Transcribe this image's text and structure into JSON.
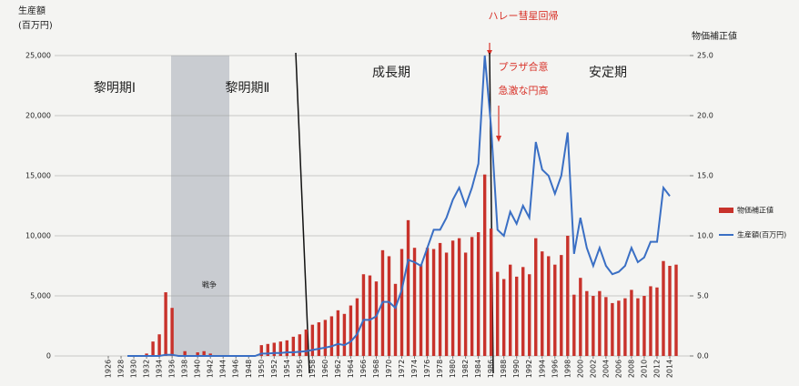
{
  "chart_data": {
    "type": "combo",
    "y_label_lines": [
      "生産額",
      "(百万円)"
    ],
    "y2_label": "物価補正値",
    "annotations": [
      "黎明期Ⅰ",
      "黎明期Ⅱ",
      "成長期",
      "安定期",
      "戦争",
      "ハレー彗星回帰",
      "プラザ合意",
      "急激な円高"
    ],
    "x": [
      1926,
      1927,
      1928,
      1929,
      1930,
      1931,
      1932,
      1933,
      1934,
      1935,
      1936,
      1937,
      1938,
      1939,
      1940,
      1941,
      1942,
      1943,
      1944,
      1945,
      1946,
      1947,
      1948,
      1949,
      1950,
      1951,
      1952,
      1953,
      1954,
      1955,
      1956,
      1957,
      1958,
      1959,
      1960,
      1961,
      1962,
      1963,
      1964,
      1965,
      1966,
      1967,
      1968,
      1969,
      1970,
      1971,
      1972,
      1973,
      1974,
      1975,
      1976,
      1977,
      1978,
      1979,
      1980,
      1981,
      1982,
      1983,
      1984,
      1985,
      1986,
      1987,
      1988,
      1989,
      1990,
      1991,
      1992,
      1993,
      1994,
      1995,
      1996,
      1997,
      1998,
      1999,
      2000,
      2001,
      2002,
      2003,
      2004,
      2005,
      2006,
      2007,
      2008,
      2009,
      2010,
      2011,
      2012,
      2013,
      2014,
      2015
    ],
    "xlim": [
      1925.5,
      2015.5
    ],
    "xticks": [
      1926,
      1928,
      1930,
      1932,
      1934,
      1936,
      1938,
      1940,
      1942,
      1944,
      1946,
      1948,
      1950,
      1952,
      1954,
      1956,
      1958,
      1960,
      1962,
      1964,
      1966,
      1968,
      1970,
      1972,
      1974,
      1976,
      1978,
      1980,
      1982,
      1984,
      1986,
      1988,
      1990,
      1992,
      1994,
      1996,
      1998,
      2000,
      2002,
      2004,
      2006,
      2008,
      2010,
      2012,
      2014
    ],
    "ylim": [
      0,
      25000
    ],
    "yticks": [
      0,
      {
        "value": 5000,
        "label": "5,000"
      },
      {
        "value": 10000,
        "label": "10,000"
      },
      {
        "value": 15000,
        "label": "15,000"
      },
      {
        "value": 20000,
        "label": "20,000"
      },
      {
        "value": 25000,
        "label": "25,000"
      }
    ],
    "y2lim": [
      0,
      25
    ],
    "y2ticks": [
      {
        "value": 0,
        "label": "0.0"
      },
      {
        "value": 5,
        "label": "5.0"
      },
      {
        "value": 10,
        "label": "10.0"
      },
      {
        "value": 15,
        "label": "15.0"
      },
      {
        "value": 20,
        "label": "20.0"
      },
      {
        "value": 25,
        "label": "25.0"
      }
    ],
    "grid": true,
    "series": [
      {
        "name": "物価補正値",
        "type": "bar",
        "axis": "y2",
        "color": "#c8322b",
        "values": [
          0,
          0,
          0,
          0,
          0,
          0,
          0.2,
          1.2,
          1.8,
          5.3,
          4.0,
          0,
          0.4,
          0,
          0.3,
          0.4,
          0.2,
          0,
          0,
          0,
          0,
          0,
          0,
          0,
          0.9,
          1.0,
          1.1,
          1.2,
          1.3,
          1.6,
          1.8,
          2.2,
          2.6,
          2.8,
          3.0,
          3.3,
          3.8,
          3.5,
          4.2,
          4.8,
          6.8,
          6.7,
          6.2,
          8.8,
          8.3,
          6.0,
          8.9,
          11.3,
          9.0,
          7.6,
          9.0,
          8.9,
          9.4,
          8.6,
          9.6,
          9.8,
          8.6,
          9.9,
          10.3,
          15.1,
          10.6,
          7.0,
          6.4,
          7.6,
          6.6,
          7.4,
          6.8,
          9.8,
          8.7,
          8.3,
          7.6,
          8.4,
          10.0,
          5.1,
          6.5,
          5.4,
          5.0,
          5.4,
          4.9,
          4.4,
          4.6,
          4.8,
          5.5,
          4.8,
          5.0,
          5.8,
          5.7,
          7.9,
          7.5,
          7.6
        ]
      },
      {
        "name": "生産額(百万円)",
        "type": "line",
        "color": "#3a6fc4",
        "values": [
          null,
          null,
          null,
          0,
          0,
          0,
          0,
          0,
          0,
          100,
          100,
          0,
          0,
          0,
          0,
          0,
          0,
          0,
          0,
          0,
          0,
          0,
          0,
          0,
          200,
          200,
          250,
          250,
          300,
          300,
          350,
          400,
          500,
          600,
          700,
          800,
          1000,
          900,
          1200,
          1800,
          3000,
          3000,
          3300,
          4500,
          4500,
          4000,
          5500,
          8000,
          7800,
          7500,
          9000,
          10500,
          10500,
          11500,
          13000,
          14000,
          12500,
          14000,
          16000,
          25000,
          19000,
          10500,
          10000,
          12000,
          11000,
          12500,
          11500,
          17800,
          15500,
          15000,
          13500,
          15000,
          18600,
          8500,
          11500,
          9000,
          7500,
          9000,
          7500,
          6800,
          7000,
          7500,
          9000,
          7800,
          8200,
          9500,
          9500,
          14000,
          13300,
          null
        ]
      }
    ]
  }
}
